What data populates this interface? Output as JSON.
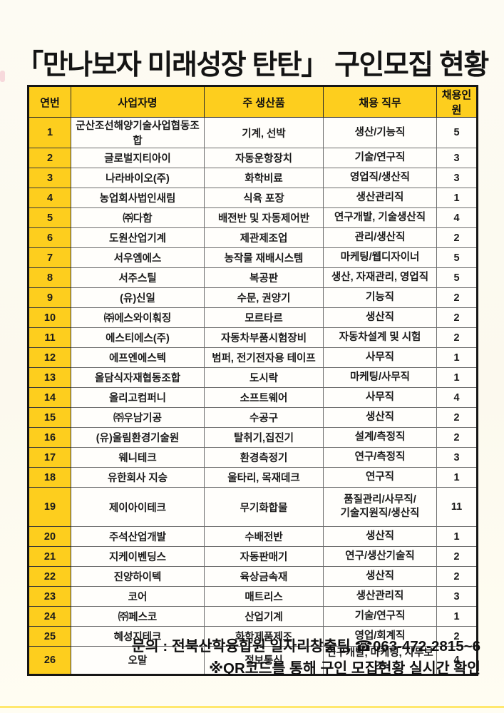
{
  "page": {
    "title": "「만나보자 미래성장 탄탄」 구인모집 현황",
    "footer_line1": "문의 : 전북산학융합원 일자리창출팀 ☎063-472-2815~6",
    "footer_line2": "※QR코드를 통해 구인 모집현황 실시간 확인"
  },
  "colors": {
    "accent_yellow": "#fdce1e",
    "border_dark": "#161616",
    "paper": "#fcf9ee"
  },
  "table": {
    "headers": [
      "연번",
      "사업자명",
      "주 생산품",
      "채용 직무",
      "채용인원"
    ],
    "rows": [
      {
        "no": "1",
        "company": "군산조선해양기술사업협동조합",
        "product": "기계, 선박",
        "job": "생산/기능직",
        "hires": "5"
      },
      {
        "no": "2",
        "company": "글로벌지티아이",
        "product": "자동운항장치",
        "job": "기술/연구직",
        "hires": "3"
      },
      {
        "no": "3",
        "company": "나라바이오(주)",
        "product": "화학비료",
        "job": "영업직/생산직",
        "hires": "3"
      },
      {
        "no": "4",
        "company": "농업회사법인새림",
        "product": "식육 포장",
        "job": "생산관리직",
        "hires": "1"
      },
      {
        "no": "5",
        "company": "㈜다함",
        "product": "배전반 및 자동제어반",
        "job": "연구개발, 기술생산직",
        "hires": "4"
      },
      {
        "no": "6",
        "company": "도원산업기계",
        "product": "제관제조업",
        "job": "관리/생산직",
        "hires": "2"
      },
      {
        "no": "7",
        "company": "서우엠에스",
        "product": "농작물 재배시스템",
        "job": "마케팅/웹디자이너",
        "hires": "5"
      },
      {
        "no": "8",
        "company": "서주스틸",
        "product": "복공판",
        "job": "생산, 자재관리, 영업직",
        "hires": "5"
      },
      {
        "no": "9",
        "company": "(유)신일",
        "product": "수문, 권양기",
        "job": "기능직",
        "hires": "2"
      },
      {
        "no": "10",
        "company": "㈜에스와이훠징",
        "product": "모르타르",
        "job": "생산직",
        "hires": "2"
      },
      {
        "no": "11",
        "company": "에스티에스(주)",
        "product": "자동차부품시험장비",
        "job": "자동차설계 및 시험",
        "hires": "2"
      },
      {
        "no": "12",
        "company": "에프엔에스텍",
        "product": "범퍼, 전기전자용 테이프",
        "job": "사무직",
        "hires": "1"
      },
      {
        "no": "13",
        "company": "올담식자재협동조합",
        "product": "도시락",
        "job": "마케팅/사무직",
        "hires": "1"
      },
      {
        "no": "14",
        "company": "올리고컴퍼니",
        "product": "소프트웨어",
        "job": "사무직",
        "hires": "4"
      },
      {
        "no": "15",
        "company": "㈜우남기공",
        "product": "수공구",
        "job": "생산직",
        "hires": "2"
      },
      {
        "no": "16",
        "company": "(유)울림환경기술원",
        "product": "탈취기,집진기",
        "job": "설계/측정직",
        "hires": "2"
      },
      {
        "no": "17",
        "company": "웨니테크",
        "product": "환경측정기",
        "job": "연구/측정직",
        "hires": "3"
      },
      {
        "no": "18",
        "company": "유한회사 지승",
        "product": "울타리, 목재데크",
        "job": "연구직",
        "hires": "1"
      },
      {
        "no": "19",
        "company": "제이아이테크",
        "product": "무기화합물",
        "job": "품질관리/사무직/\n기술지원직/생산직",
        "hires": "11"
      },
      {
        "no": "20",
        "company": "주석산업개발",
        "product": "수배전반",
        "job": "생산직",
        "hires": "1"
      },
      {
        "no": "21",
        "company": "지케이벤딩스",
        "product": "자동판매기",
        "job": "연구/생산기술직",
        "hires": "2"
      },
      {
        "no": "22",
        "company": "진양하이텍",
        "product": "육상금속재",
        "job": "생산직",
        "hires": "2"
      },
      {
        "no": "23",
        "company": "코어",
        "product": "매트리스",
        "job": "생산관리직",
        "hires": "3"
      },
      {
        "no": "24",
        "company": "㈜페스코",
        "product": "산업기계",
        "job": "기술/연구직",
        "hires": "1"
      },
      {
        "no": "25",
        "company": "혜성지테크",
        "product": "화학제품제조",
        "job": "영업/회계직",
        "hires": "2"
      },
      {
        "no": "26",
        "company": "오말",
        "product": "정보통신",
        "job": "연구개발, 마케팅, 사무보조",
        "hires": "4"
      }
    ]
  }
}
